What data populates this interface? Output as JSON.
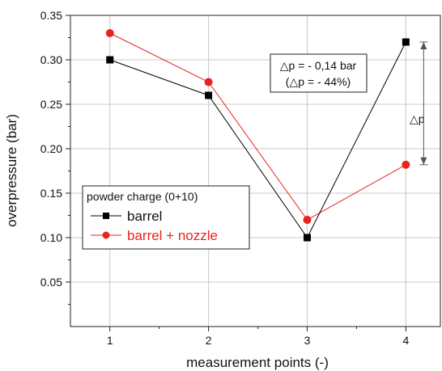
{
  "chart_data": {
    "type": "line",
    "x": [
      1,
      2,
      3,
      4
    ],
    "xticks": [
      "1",
      "2",
      "3",
      "4"
    ],
    "yticks": [
      "0.05",
      "0.10",
      "0.15",
      "0.20",
      "0.25",
      "0.30",
      "0.35"
    ],
    "xlabel": "measurement points (-)",
    "ylabel": "overpressure (bar)",
    "xlim": [
      0.6,
      4.35
    ],
    "ylim": [
      0.0,
      0.35
    ],
    "grid": true,
    "legend": {
      "title": "powder charge (0+10)",
      "placement": "middle-left"
    },
    "series": [
      {
        "name": "barrel",
        "values": [
          0.3,
          0.26,
          0.1,
          0.32
        ],
        "color": "#000000",
        "marker": "square"
      },
      {
        "name": "barrel + nozzle",
        "values": [
          0.33,
          0.275,
          0.12,
          0.182
        ],
        "color": "#e8231c",
        "marker": "circle"
      }
    ],
    "annotations": {
      "box_line1": "△p = - 0,14 bar",
      "box_line2": "(△p = - 44%)",
      "delta_label": "△p",
      "delta_at_x": 4,
      "delta_from": 0.32,
      "delta_to": 0.182
    }
  }
}
